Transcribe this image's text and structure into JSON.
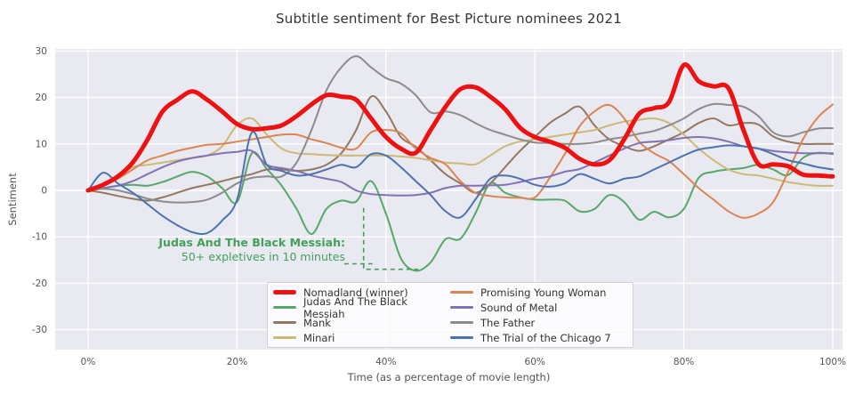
{
  "colors": {
    "background": "#ffffff",
    "plot_bg": "#e9e9f1",
    "grid": "#ffffff",
    "tick_label": "#555555",
    "title_color": "#333333",
    "annotation_green": "#43a05a"
  },
  "chart_data": {
    "type": "line",
    "title": "Subtitle sentiment for Best Picture nominees 2021",
    "xlabel": "Time (as a percentage of movie length)",
    "ylabel": "Sentiment",
    "x_ticks": [
      "0%",
      "20%",
      "40%",
      "60%",
      "80%",
      "100%"
    ],
    "x_tick_values": [
      0,
      20,
      40,
      60,
      80,
      100
    ],
    "y_ticks": [
      30,
      20,
      10,
      0,
      -10,
      -20,
      -30
    ],
    "xlim": [
      -4.4,
      101.3
    ],
    "ylim": [
      -34.3,
      30.5
    ],
    "grid": true,
    "legend_position": "bottom-center",
    "legend_columns": 2,
    "x_start": 0,
    "x_step": 2,
    "series": [
      {
        "name": "Nomadland (winner)",
        "color": "#ee1111",
        "line_width": 5,
        "draw_order": 9,
        "values": [
          0,
          1.2,
          3,
          6,
          11,
          17,
          19.5,
          21.3,
          19.5,
          17,
          14.3,
          13.2,
          13.4,
          14,
          16,
          18.5,
          20.5,
          20.2,
          19.5,
          15.5,
          11.5,
          9,
          8.1,
          13,
          18,
          21.8,
          22.2,
          20.2,
          17.5,
          13.5,
          11.5,
          10.5,
          9.2,
          6.8,
          5.6,
          6.5,
          11,
          16.5,
          17.7,
          19,
          27,
          23.5,
          22.4,
          22,
          13,
          5.7,
          5.6,
          5.2,
          3.4,
          3.2,
          3
        ]
      },
      {
        "name": "Judas And The Black Messiah",
        "color": "#55a868",
        "line_width": 2,
        "draw_order": 2,
        "values": [
          0,
          0.5,
          1,
          1.2,
          1,
          1.8,
          3,
          4,
          3,
          0.5,
          -2.5,
          8,
          4.6,
          1,
          -4,
          -9.4,
          -4,
          -2.2,
          -2.4,
          2,
          -5,
          -14.6,
          -17.3,
          -15.5,
          -10.5,
          -10.4,
          -5,
          1.5,
          -0.5,
          -1.5,
          -2,
          -2,
          -2.2,
          -4.5,
          -4,
          -1,
          -2.5,
          -6.3,
          -4.6,
          -5.8,
          -4,
          2.7,
          4,
          4.5,
          4.8,
          5.5,
          4.5,
          3.3,
          7,
          8.1,
          7.8
        ]
      },
      {
        "name": "Mank",
        "color": "#937860",
        "line_width": 2,
        "draw_order": 3,
        "values": [
          0,
          -0.5,
          -1.2,
          -1.8,
          -2.2,
          -1.5,
          -0.5,
          0.5,
          1.2,
          2,
          2.8,
          3.5,
          4.5,
          4.5,
          4.2,
          4.5,
          5.5,
          8,
          13,
          20.2,
          17,
          11.5,
          9.4,
          6.5,
          3.5,
          1.5,
          -0.5,
          1.5,
          5,
          8.5,
          11.5,
          14.5,
          16.5,
          18,
          14,
          11,
          9.5,
          8.5,
          9.5,
          11,
          12.5,
          14.5,
          15.5,
          14,
          14.5,
          14.2,
          11.6,
          10.5,
          10,
          10,
          10
        ]
      },
      {
        "name": "Minari",
        "color": "#ccb974",
        "line_width": 2,
        "draw_order": 4,
        "values": [
          0,
          1,
          3,
          5,
          5.5,
          6,
          6.5,
          7,
          7.5,
          9.5,
          14,
          15.5,
          12,
          9,
          8,
          7.8,
          7.6,
          7.5,
          7.5,
          7.5,
          7.5,
          7.3,
          7,
          6.5,
          6,
          5.8,
          5.6,
          7.5,
          9.5,
          10.5,
          11,
          11.5,
          12,
          12.5,
          13,
          14,
          14.8,
          15.2,
          15.5,
          14.5,
          12,
          9,
          6.5,
          4.5,
          3.5,
          3.2,
          2.5,
          1.8,
          1.3,
          1,
          1
        ]
      },
      {
        "name": "Promising Young Woman",
        "color": "#dd8452",
        "line_width": 2,
        "draw_order": 5,
        "values": [
          0,
          1,
          2.5,
          4.5,
          6.5,
          7.5,
          8.5,
          9.2,
          9.8,
          10,
          10.5,
          11,
          11.5,
          12,
          12,
          11,
          10.2,
          9.2,
          9,
          12.5,
          13,
          12.3,
          9,
          7,
          5.6,
          2,
          -0.5,
          -1.2,
          -1.5,
          -1.6,
          -1.5,
          2.7,
          7.8,
          13.8,
          17,
          18.4,
          15.5,
          10.5,
          8,
          6.3,
          3.5,
          0.5,
          -2,
          -4.5,
          -5.9,
          -5,
          -2.5,
          4,
          11,
          15.7,
          18.5
        ]
      },
      {
        "name": "Sound of Metal",
        "color": "#8172b3",
        "line_width": 2,
        "draw_order": 6,
        "values": [
          0,
          0.5,
          1,
          2,
          3.5,
          5,
          6.2,
          7,
          7.5,
          8,
          8.3,
          8.5,
          5.5,
          4.8,
          4.2,
          3.2,
          2.5,
          1.8,
          0,
          -0.8,
          -1,
          -1.1,
          -1,
          -0.5,
          0.5,
          1,
          1,
          1.1,
          1.2,
          1.8,
          2.5,
          3,
          4,
          4.6,
          6,
          7.5,
          9,
          10.2,
          10.5,
          10.8,
          11.3,
          11.5,
          11.2,
          10.5,
          9.5,
          9,
          8.5,
          8.2,
          8,
          8,
          8
        ]
      },
      {
        "name": "The Father",
        "color": "#8c8c8c",
        "line_width": 2,
        "draw_order": 7,
        "values": [
          0,
          0.3,
          0,
          -0.8,
          -1.8,
          -2.4,
          -2.6,
          -2.5,
          -2,
          -0.5,
          1.5,
          2.7,
          3,
          3,
          6,
          13,
          21.5,
          26.5,
          28.9,
          26.5,
          24.2,
          23,
          20.5,
          16.8,
          17,
          16.2,
          14.5,
          13,
          12,
          11,
          10.3,
          10.2,
          10,
          10,
          10.3,
          11,
          11.5,
          12.2,
          12.8,
          14,
          15.5,
          17.5,
          18.6,
          18.4,
          18,
          16,
          12.5,
          11.6,
          12.5,
          13.3,
          13.4
        ]
      },
      {
        "name": "The Trial of the Chicago 7",
        "color": "#4c72b0",
        "line_width": 2,
        "draw_order": 8,
        "values": [
          0,
          3.8,
          1.5,
          -0.5,
          -3,
          -5.5,
          -7.5,
          -9,
          -9.2,
          -6.5,
          -2,
          12.5,
          5.5,
          4.2,
          3.2,
          3.5,
          4.5,
          5.5,
          5,
          7.8,
          7.5,
          5,
          2,
          -1,
          -4.5,
          -5.8,
          -2,
          2.5,
          3.2,
          2.5,
          1.2,
          0.8,
          1.5,
          3.5,
          2.5,
          1.5,
          2.5,
          3,
          4.5,
          6,
          7.5,
          8.8,
          9.3,
          9.7,
          9.5,
          9,
          7.8,
          6.5,
          5.8,
          5,
          4.5
        ]
      }
    ],
    "annotation": {
      "line1": "Judas And The Black Messiah:",
      "line2": "50+ expletives in 10 minutes",
      "color": "#43a05a",
      "connector_segments": [
        [
          [
            34.4,
            -15.8
          ],
          [
            38.2,
            -15.8
          ]
        ],
        [
          [
            37.0,
            -3.8
          ],
          [
            37.0,
            -17.0
          ],
          [
            44.3,
            -17.0
          ]
        ]
      ]
    }
  }
}
